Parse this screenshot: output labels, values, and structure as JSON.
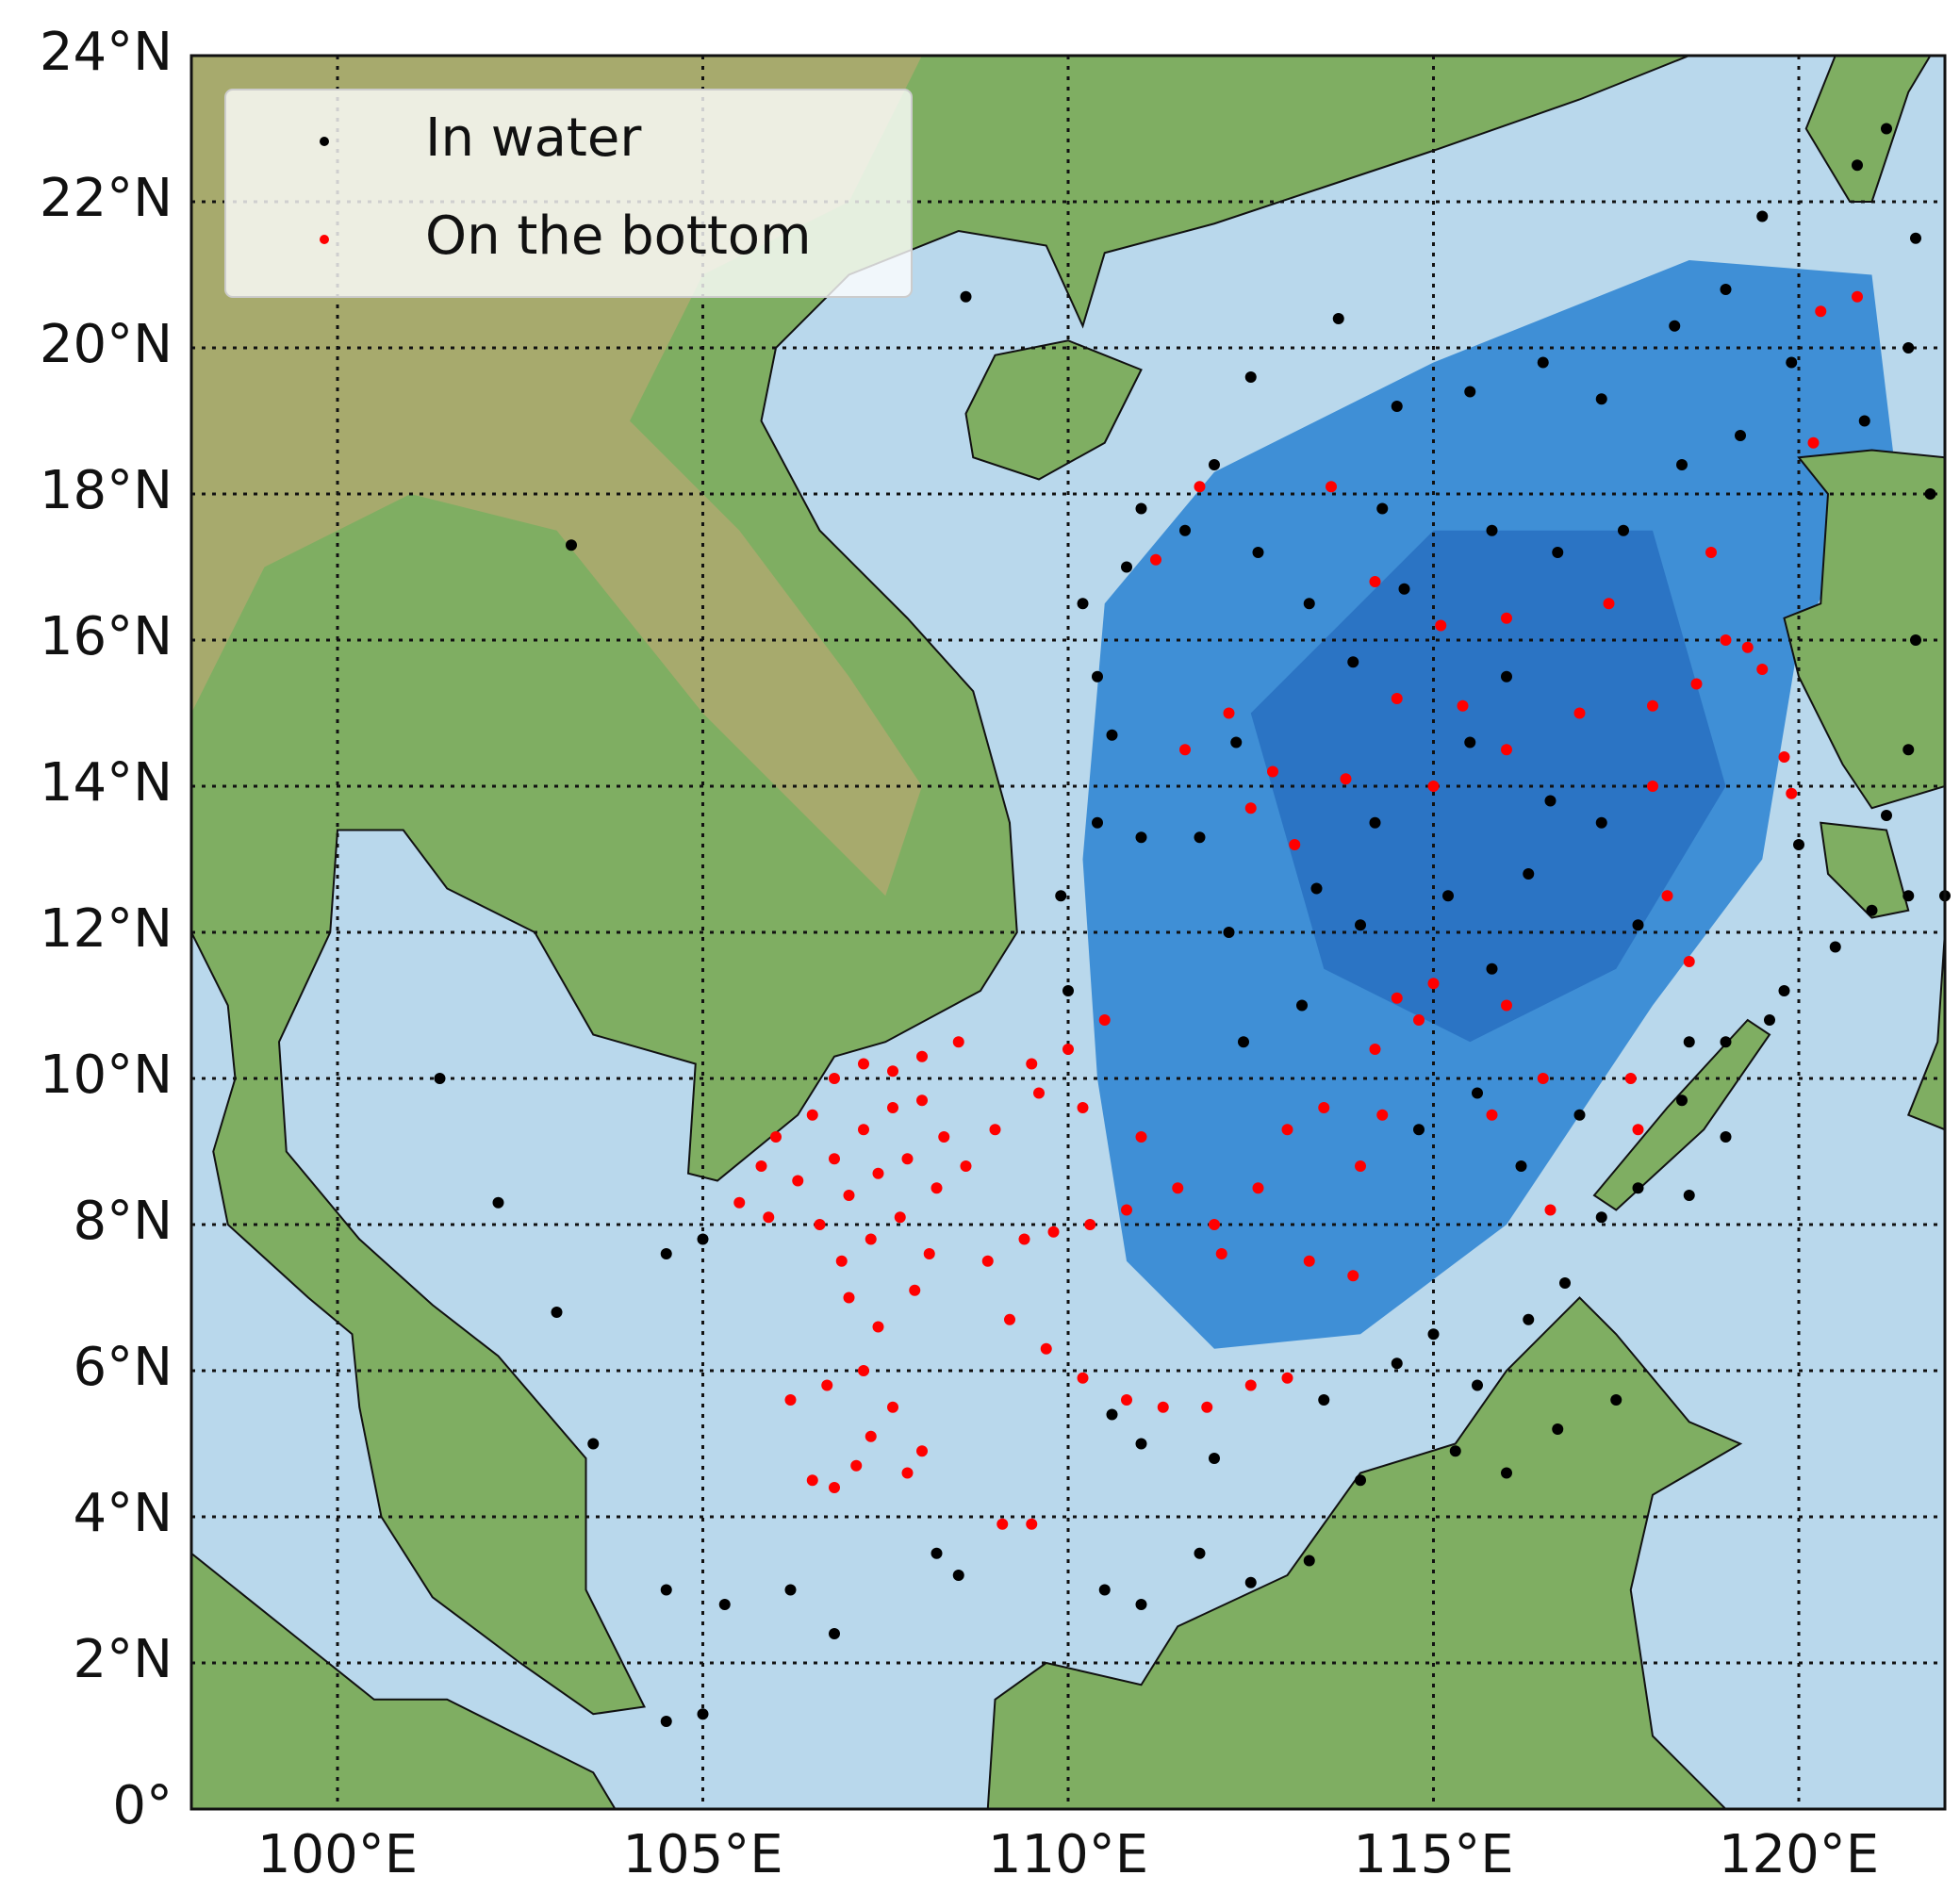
{
  "chart_data": {
    "type": "scatter",
    "xlim": [
      98,
      122
    ],
    "ylim": [
      0,
      24
    ],
    "xticks": [
      {
        "value": 100,
        "label": "100°E"
      },
      {
        "value": 105,
        "label": "105°E"
      },
      {
        "value": 110,
        "label": "110°E"
      },
      {
        "value": 115,
        "label": "115°E"
      },
      {
        "value": 120,
        "label": "120°E"
      }
    ],
    "yticks": [
      {
        "value": 0,
        "label": "0°"
      },
      {
        "value": 2,
        "label": "2°N"
      },
      {
        "value": 4,
        "label": "4°N"
      },
      {
        "value": 6,
        "label": "6°N"
      },
      {
        "value": 8,
        "label": "8°N"
      },
      {
        "value": 10,
        "label": "10°N"
      },
      {
        "value": 12,
        "label": "12°N"
      },
      {
        "value": 14,
        "label": "14°N"
      },
      {
        "value": 16,
        "label": "16°N"
      },
      {
        "value": 18,
        "label": "18°N"
      },
      {
        "value": 20,
        "label": "20°N"
      },
      {
        "value": 22,
        "label": "22°N"
      },
      {
        "value": 24,
        "label": "24°N"
      }
    ],
    "grid": true,
    "legend": "upper left",
    "series": [
      {
        "name": "In water",
        "color": "#000000",
        "x": [
          103.2,
          101.4,
          102.2,
          103,
          104.5,
          105,
          103.5,
          104.5,
          105.3,
          106.2,
          106.8,
          104.5,
          105,
          108.2,
          108.5,
          110.5,
          111,
          111.8,
          112.5,
          113.3,
          114,
          112,
          111,
          110.6,
          113.5,
          114.5,
          115,
          115.6,
          116.3,
          116.8,
          117.3,
          117.8,
          116.7,
          117.5,
          116,
          115.3,
          118.4,
          119,
          119.6,
          119.8,
          120.5,
          121,
          121.5,
          122,
          120,
          121.2,
          121.5,
          121.6,
          121.8,
          121.5,
          121.6,
          120.8,
          121.2,
          119.5,
          119,
          118.3,
          117.3,
          116.5,
          115.5,
          114.5,
          113.7,
          112.5,
          112,
          111.6,
          110.8,
          110.2,
          110.4,
          110.6,
          110.4,
          109.9,
          110,
          111,
          111.8,
          112.2,
          113.4,
          114.2,
          115.2,
          115.8,
          116.3,
          116.6,
          117.3,
          117.8,
          118.5,
          119,
          118.5,
          117,
          116.2,
          115.6,
          114.8,
          114,
          113.2,
          112.4,
          115.5,
          114.6,
          113.3,
          112.6,
          115.8,
          116.7,
          117.6,
          118.4,
          119.2,
          119.9,
          120.9,
          114.3,
          116,
          112.3,
          113.9,
          108.6,
          111
        ],
        "y": [
          17.3,
          10,
          8.3,
          6.8,
          7.6,
          7.8,
          5,
          3,
          2.8,
          3,
          2.4,
          1.2,
          1.3,
          3.5,
          3.2,
          3,
          2.8,
          3.5,
          3.1,
          3.4,
          4.5,
          4.8,
          5,
          5.4,
          5.6,
          6.1,
          6.5,
          5.8,
          6.7,
          7.2,
          8.1,
          8.5,
          5.2,
          5.6,
          4.6,
          4.9,
          9.7,
          10.5,
          10.8,
          11.2,
          11.8,
          12.3,
          12.5,
          12.5,
          13.2,
          13.6,
          14.5,
          16,
          18,
          20,
          21.5,
          22.5,
          23,
          21.8,
          20.8,
          20.3,
          19.3,
          19.8,
          19.4,
          19.2,
          20.4,
          19.6,
          18.4,
          17.5,
          17,
          16.5,
          15.5,
          14.7,
          13.5,
          12.5,
          11.2,
          13.3,
          13.3,
          12,
          12.6,
          13.5,
          12.5,
          11.5,
          12.8,
          13.8,
          13.5,
          12.1,
          10.5,
          9.2,
          8.4,
          9.5,
          8.8,
          9.8,
          9.3,
          12.1,
          11,
          10.5,
          14.6,
          16.7,
          16.5,
          17.2,
          17.5,
          17.2,
          17.5,
          18.4,
          18.8,
          19.8,
          19,
          17.8,
          15.5,
          14.6,
          15.7,
          20.7,
          17.8
        ]
      },
      {
        "name": "On the bottom",
        "color": "#ff0000",
        "x": [
          105.5,
          105.8,
          106,
          106.5,
          106.8,
          107.2,
          107.6,
          108,
          108.5,
          106.3,
          106.8,
          107.2,
          107.6,
          108,
          108.3,
          106.6,
          107,
          107.4,
          107.8,
          108.2,
          105.9,
          106.9,
          107.3,
          107.7,
          108.1,
          107,
          107.4,
          107.9,
          107.2,
          107.6,
          107.3,
          106.2,
          106.7,
          108,
          107.8,
          106.8,
          107.1,
          106.5,
          109.1,
          109.5,
          108.9,
          109.4,
          109.8,
          110.3,
          110.8,
          109.2,
          109.7,
          110.2,
          110.8,
          111.3,
          111.9,
          112.5,
          113,
          108.6,
          109,
          109.6,
          110,
          110.5,
          109.5,
          110.2,
          111,
          111.5,
          112,
          112.6,
          113,
          113.5,
          114,
          113.3,
          114.3,
          114.8,
          115,
          114.5,
          114.2,
          112.1,
          113.9,
          111.6,
          112.5,
          113.1,
          112.8,
          112.2,
          113.8,
          114.5,
          114.2,
          115.4,
          115.1,
          113.6,
          111.8,
          111.2,
          117.4,
          117,
          118,
          118.6,
          119,
          119.3,
          119.5,
          119.8,
          119.9,
          118,
          116,
          120.2,
          120.3,
          120.8,
          118.8,
          118.5,
          118.2,
          117.7,
          116.5,
          116,
          115,
          116,
          115.8,
          116.6,
          117.8
        ],
        "y": [
          8.3,
          8.8,
          9.2,
          9.5,
          10,
          10.2,
          10.1,
          10.3,
          10.5,
          8.6,
          8.9,
          9.3,
          9.6,
          9.7,
          9.2,
          8,
          8.4,
          8.7,
          8.9,
          8.5,
          8.1,
          7.5,
          7.8,
          8.1,
          7.6,
          7,
          6.6,
          7.1,
          6,
          5.5,
          5.1,
          5.6,
          5.8,
          4.9,
          4.6,
          4.4,
          4.7,
          4.5,
          3.9,
          3.9,
          7.5,
          7.8,
          7.9,
          8,
          8.2,
          6.7,
          6.3,
          5.9,
          5.6,
          5.5,
          5.5,
          5.8,
          5.9,
          8.8,
          9.3,
          9.8,
          10.4,
          10.8,
          10.2,
          9.6,
          9.2,
          8.5,
          8,
          8.5,
          9.3,
          9.6,
          8.8,
          7.5,
          9.5,
          10.8,
          11.3,
          11.1,
          10.4,
          7.6,
          7.3,
          14.5,
          13.7,
          13.2,
          14.2,
          15,
          14.1,
          15.2,
          16.8,
          15.1,
          16.2,
          18.1,
          18.1,
          17.1,
          16.5,
          15,
          15.1,
          15.4,
          16,
          15.9,
          15.6,
          14.4,
          13.9,
          14,
          16.3,
          18.7,
          20.5,
          20.7,
          17.2,
          11.6,
          12.5,
          10,
          10,
          11,
          14,
          14.5,
          9.5,
          8.2,
          9.3
        ]
      }
    ]
  }
}
